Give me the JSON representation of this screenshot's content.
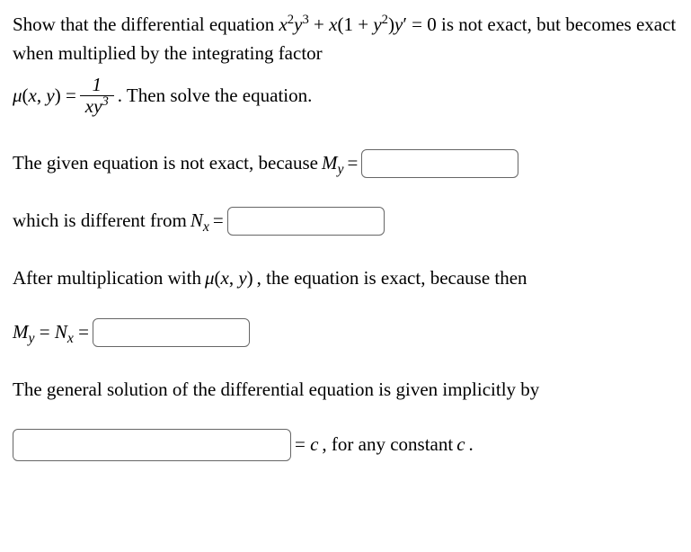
{
  "intro": {
    "text1": "Show that the differential equation ",
    "eq1_expr": "x²y³ + x(1 + y²)y′ = 0",
    "text2": " is not exact, but becomes exact when multiplied by the integrating factor",
    "mu_lhs": "μ(x, y) = ",
    "frac_num": "1",
    "frac_den": "xy³",
    "text3": ". Then solve the equation."
  },
  "q1": {
    "text": "The given equation is not exact, because ",
    "var": "M",
    "sub": "y",
    "eq": " = "
  },
  "q2": {
    "text": "which is different from ",
    "var": "N",
    "sub": "x",
    "eq": " = "
  },
  "q3": {
    "text": "After multiplication with ",
    "mu_expr": "μ(x, y)",
    "text2": ", the equation is exact, because then"
  },
  "q4": {
    "var1": "M",
    "sub1": "y",
    "eq1": " = ",
    "var2": "N",
    "sub2": "x",
    "eq2": " = "
  },
  "q5": {
    "text": "The general solution of the differential equation is given implicitly by"
  },
  "q6": {
    "eq": " = ",
    "var": "c",
    "text": ", for any constant ",
    "var2": "c",
    "period": "."
  },
  "style": {
    "font_family": "Times New Roman",
    "font_size": 21,
    "text_color": "#000000",
    "background_color": "#ffffff",
    "input_border_color": "#666666",
    "input_border_radius": 6,
    "input_width_med": 175,
    "input_width_lg": 310
  }
}
